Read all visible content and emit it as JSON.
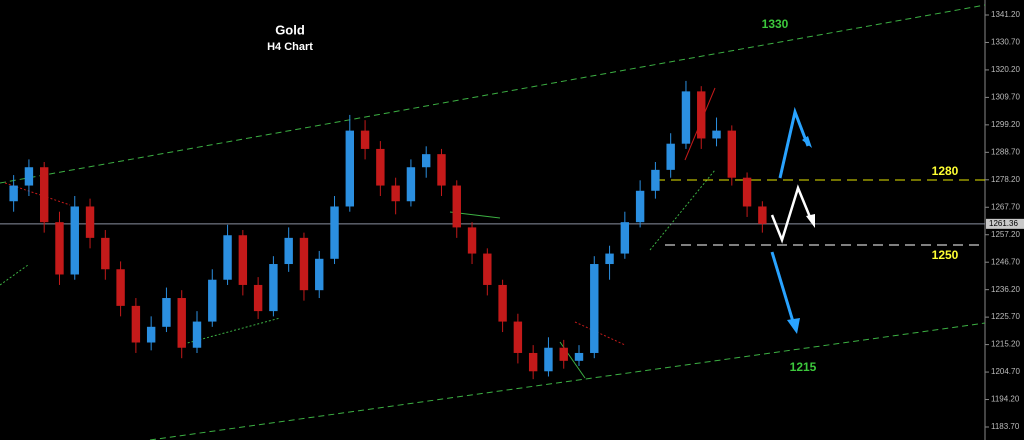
{
  "chart_data": {
    "type": "candlestick",
    "title": "Gold",
    "subtitle": "H4 Chart",
    "up_color": "#2b8fe0",
    "down_color": "#c41a1a",
    "candles": [
      [
        1270,
        1280,
        1266,
        1276
      ],
      [
        1276,
        1286,
        1272,
        1283
      ],
      [
        1283,
        1285,
        1258,
        1262
      ],
      [
        1262,
        1266,
        1238,
        1242
      ],
      [
        1242,
        1272,
        1240,
        1268
      ],
      [
        1268,
        1271,
        1252,
        1256
      ],
      [
        1256,
        1259,
        1240,
        1244
      ],
      [
        1244,
        1247,
        1226,
        1230
      ],
      [
        1230,
        1233,
        1212,
        1216
      ],
      [
        1216,
        1226,
        1213,
        1222
      ],
      [
        1222,
        1237,
        1220,
        1233
      ],
      [
        1233,
        1236,
        1210,
        1214
      ],
      [
        1214,
        1228,
        1212,
        1224
      ],
      [
        1224,
        1244,
        1222,
        1240
      ],
      [
        1240,
        1261,
        1238,
        1257
      ],
      [
        1257,
        1259,
        1234,
        1238
      ],
      [
        1238,
        1241,
        1225,
        1228
      ],
      [
        1228,
        1249,
        1226,
        1246
      ],
      [
        1246,
        1260,
        1243,
        1256
      ],
      [
        1256,
        1258,
        1232,
        1236
      ],
      [
        1236,
        1251,
        1233,
        1248
      ],
      [
        1248,
        1272,
        1246,
        1268
      ],
      [
        1268,
        1303,
        1266,
        1297
      ],
      [
        1297,
        1301,
        1286,
        1290
      ],
      [
        1290,
        1293,
        1272,
        1276
      ],
      [
        1276,
        1279,
        1265,
        1270
      ],
      [
        1270,
        1286,
        1268,
        1283
      ],
      [
        1283,
        1291,
        1279,
        1288
      ],
      [
        1288,
        1290,
        1272,
        1276
      ],
      [
        1276,
        1278,
        1256,
        1260
      ],
      [
        1260,
        1262,
        1246,
        1250
      ],
      [
        1250,
        1252,
        1234,
        1238
      ],
      [
        1238,
        1240,
        1220,
        1224
      ],
      [
        1224,
        1227,
        1208,
        1212
      ],
      [
        1212,
        1215,
        1202,
        1205
      ],
      [
        1205,
        1218,
        1203,
        1214
      ],
      [
        1214,
        1217,
        1206,
        1209
      ],
      [
        1209,
        1215,
        1207,
        1212
      ],
      [
        1212,
        1249,
        1210,
        1246
      ],
      [
        1246,
        1253,
        1240,
        1250
      ],
      [
        1250,
        1266,
        1248,
        1262
      ],
      [
        1262,
        1278,
        1260,
        1274
      ],
      [
        1274,
        1285,
        1271,
        1282
      ],
      [
        1282,
        1296,
        1279,
        1292
      ],
      [
        1292,
        1316,
        1290,
        1312
      ],
      [
        1312,
        1314,
        1290,
        1294
      ],
      [
        1294,
        1302,
        1291,
        1297
      ],
      [
        1297,
        1299,
        1276,
        1279
      ],
      [
        1279,
        1281,
        1264,
        1268
      ],
      [
        1268,
        1270,
        1258,
        1261.36
      ]
    ],
    "ylim": [
      1178.73,
      1346.93
    ],
    "yticks": [
      {
        "value": 1183.7,
        "label": "1183.70"
      },
      {
        "value": 1194.2,
        "label": "1194.20"
      },
      {
        "value": 1204.7,
        "label": "1204.70"
      },
      {
        "value": 1215.2,
        "label": "1215.20"
      },
      {
        "value": 1225.7,
        "label": "1225.70"
      },
      {
        "value": 1236.2,
        "label": "1236.20"
      },
      {
        "value": 1246.7,
        "label": "1246.70"
      },
      {
        "value": 1257.2,
        "label": "1257.20"
      },
      {
        "value": 1267.7,
        "label": "1267.70"
      },
      {
        "value": 1278.2,
        "label": "1278.20"
      },
      {
        "value": 1288.7,
        "label": "1288.70"
      },
      {
        "value": 1299.2,
        "label": "1299.20"
      },
      {
        "value": 1309.7,
        "label": "1309.70"
      },
      {
        "value": 1320.2,
        "label": "1320.20"
      },
      {
        "value": 1330.7,
        "label": "1330.70"
      },
      {
        "value": 1341.2,
        "label": "1341.20"
      }
    ],
    "last_price": 1261.36,
    "annotations": [
      "1330",
      "1280",
      "1250",
      "1215"
    ]
  }
}
